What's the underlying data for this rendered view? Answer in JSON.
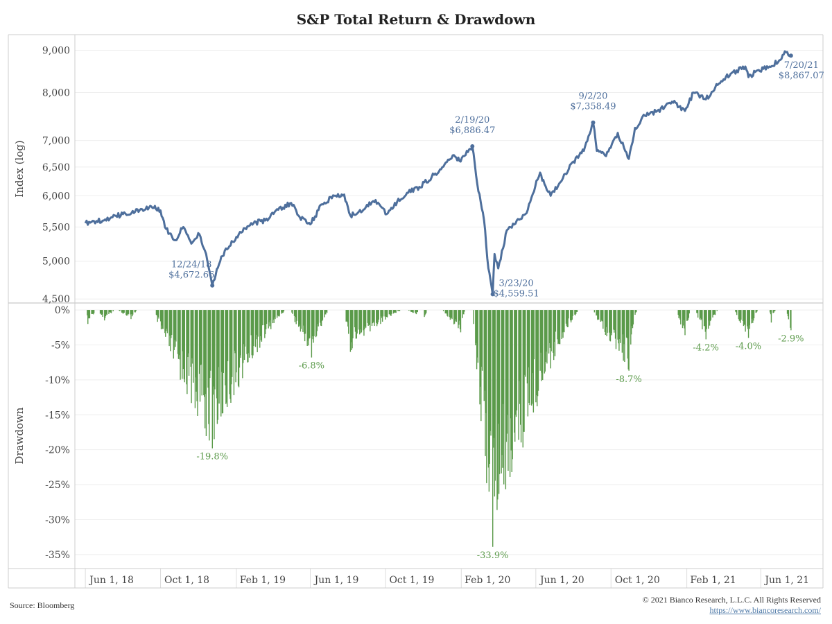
{
  "chart_data": [
    {
      "type": "line",
      "title": "S&P Total Return & Drawdown",
      "ylabel": "Index (log)",
      "yscale": "log",
      "ylim": [
        4450,
        9400
      ],
      "yticks": [
        4500,
        5000,
        5500,
        6000,
        6500,
        7000,
        8000,
        9000
      ],
      "ytick_labels": [
        "4,500",
        "5,000",
        "5,500",
        "6,000",
        "6,500",
        "7,000",
        "8,000",
        "9,000"
      ],
      "xticks": [
        "Jun 1, 18",
        "Oct 1, 18",
        "Feb 1, 19",
        "Jun 1, 19",
        "Oct 1, 19",
        "Feb 1, 20",
        "Jun 1, 20",
        "Oct 1, 20",
        "Feb 1, 21",
        "Jun 1, 21"
      ],
      "xtick_dates": [
        "2018-06-01",
        "2018-10-01",
        "2019-02-01",
        "2019-06-01",
        "2019-10-01",
        "2020-02-01",
        "2020-06-01",
        "2020-10-01",
        "2021-02-01",
        "2021-06-01"
      ],
      "xlim": [
        "2018-05-15",
        "2021-09-10"
      ],
      "grid": true,
      "color": "#4e6f9c",
      "series": [
        {
          "x": [
            "2018-06-01",
            "2018-06-15",
            "2018-07-01",
            "2018-07-15",
            "2018-08-01",
            "2018-08-15",
            "2018-09-01",
            "2018-09-20",
            "2018-10-01",
            "2018-10-10",
            "2018-10-25",
            "2018-11-07",
            "2018-11-20",
            "2018-12-03",
            "2018-12-14",
            "2018-12-24",
            "2019-01-04",
            "2019-01-15",
            "2019-02-01",
            "2019-02-15",
            "2019-03-01",
            "2019-03-20",
            "2019-04-10",
            "2019-05-01",
            "2019-05-15",
            "2019-06-01",
            "2019-06-20",
            "2019-07-10",
            "2019-07-26",
            "2019-08-05",
            "2019-08-15",
            "2019-09-01",
            "2019-09-15",
            "2019-10-03",
            "2019-10-20",
            "2019-11-05",
            "2019-11-25",
            "2019-12-15",
            "2020-01-05",
            "2020-01-20",
            "2020-01-31",
            "2020-02-10",
            "2020-02-19",
            "2020-02-27",
            "2020-03-09",
            "2020-03-16",
            "2020-03-23",
            "2020-03-26",
            "2020-04-01",
            "2020-04-15",
            "2020-05-01",
            "2020-05-15",
            "2020-06-08",
            "2020-06-15",
            "2020-06-25",
            "2020-07-15",
            "2020-08-01",
            "2020-08-18",
            "2020-09-02",
            "2020-09-08",
            "2020-09-23",
            "2020-10-12",
            "2020-10-30",
            "2020-11-09",
            "2020-11-25",
            "2020-12-15",
            "2021-01-08",
            "2021-01-29",
            "2021-02-12",
            "2021-03-04",
            "2021-03-25",
            "2021-04-15",
            "2021-05-07",
            "2021-05-12",
            "2021-05-25",
            "2021-06-15",
            "2021-07-01",
            "2021-07-12",
            "2021-07-20"
          ],
          "values": [
            5560,
            5590,
            5600,
            5650,
            5700,
            5720,
            5780,
            5800,
            5760,
            5470,
            5300,
            5500,
            5250,
            5390,
            5100,
            4672.66,
            4960,
            5180,
            5350,
            5480,
            5560,
            5600,
            5770,
            5880,
            5650,
            5540,
            5860,
            6000,
            6020,
            5680,
            5700,
            5850,
            5930,
            5700,
            5900,
            6050,
            6150,
            6320,
            6550,
            6720,
            6600,
            6800,
            6886.47,
            6200,
            5600,
            4900,
            4559.51,
            5100,
            4900,
            5450,
            5600,
            5700,
            6400,
            6200,
            6000,
            6300,
            6600,
            6800,
            7358.49,
            6800,
            6700,
            7150,
            6650,
            7250,
            7500,
            7600,
            7800,
            7600,
            8000,
            7850,
            8200,
            8450,
            8600,
            8350,
            8500,
            8600,
            8750,
            8950,
            8867.07
          ]
        }
      ],
      "annotations": [
        {
          "date": "2018-12-24",
          "value": 4672.66,
          "line1": "12/24/18",
          "line2": "$4,672.66"
        },
        {
          "date": "2020-02-19",
          "value": 6886.47,
          "line1": "2/19/20",
          "line2": "$6,886.47"
        },
        {
          "date": "2020-03-23",
          "value": 4559.51,
          "line1": "3/23/20",
          "line2": "$4,559.51"
        },
        {
          "date": "2020-09-02",
          "value": 7358.49,
          "line1": "9/2/20",
          "line2": "$7,358.49"
        },
        {
          "date": "2021-07-20",
          "value": 8867.07,
          "line1": "7/20/21",
          "line2": "$8,867.07"
        }
      ]
    },
    {
      "type": "bar",
      "ylabel": "Drawdown",
      "ylim": [
        -37,
        1
      ],
      "yticks": [
        0,
        -5,
        -10,
        -15,
        -20,
        -25,
        -30,
        -35
      ],
      "ytick_labels": [
        "0%",
        "-5%",
        "-10%",
        "-15%",
        "-20%",
        "-25%",
        "-30%",
        "-35%"
      ],
      "color": "#5b9a4a",
      "troughs": [
        {
          "start": "2018-06-01",
          "trough": "2018-06-05",
          "end": "2018-06-20",
          "value": -2.0
        },
        {
          "start": "2018-06-22",
          "trough": "2018-07-02",
          "end": "2018-07-20",
          "value": -1.5
        },
        {
          "start": "2018-07-25",
          "trough": "2018-08-14",
          "end": "2018-08-25",
          "value": -1.3
        },
        {
          "start": "2018-09-21",
          "trough": "2018-12-24",
          "end": "2019-04-23",
          "value": -19.8
        },
        {
          "start": "2019-05-01",
          "trough": "2019-06-03",
          "end": "2019-07-01",
          "value": -6.8
        },
        {
          "start": "2019-07-27",
          "trough": "2019-08-05",
          "end": "2019-10-28",
          "value": -6.0
        },
        {
          "start": "2019-11-05",
          "trough": "2019-11-20",
          "end": "2019-11-25",
          "value": -0.6
        },
        {
          "start": "2019-12-02",
          "trough": "2019-12-03",
          "end": "2019-12-10",
          "value": -1.0
        },
        {
          "start": "2020-01-02",
          "trough": "2020-01-31",
          "end": "2020-02-07",
          "value": -3.2
        },
        {
          "start": "2020-02-20",
          "trough": "2020-03-23",
          "end": "2020-08-11",
          "value": -33.9
        },
        {
          "start": "2020-09-03",
          "trough": "2020-10-30",
          "end": "2020-11-12",
          "value": -8.7
        },
        {
          "start": "2021-01-15",
          "trough": "2021-01-29",
          "end": "2021-02-08",
          "value": -3.6
        },
        {
          "start": "2021-02-16",
          "trough": "2021-03-04",
          "end": "2021-03-24",
          "value": -4.2
        },
        {
          "start": "2021-04-20",
          "trough": "2021-05-12",
          "end": "2021-05-28",
          "value": -4.0
        },
        {
          "start": "2021-06-15",
          "trough": "2021-06-18",
          "end": "2021-06-25",
          "value": -1.8
        },
        {
          "start": "2021-07-13",
          "trough": "2021-07-20",
          "end": "2021-07-20",
          "value": -2.9
        }
      ],
      "labels": [
        {
          "date": "2018-12-24",
          "value": -19.8,
          "text": "-19.8%"
        },
        {
          "date": "2019-06-03",
          "value": -6.8,
          "text": "-6.8%"
        },
        {
          "date": "2020-03-23",
          "value": -33.9,
          "text": "-33.9%"
        },
        {
          "date": "2020-10-30",
          "value": -8.7,
          "text": "-8.7%"
        },
        {
          "date": "2021-03-04",
          "value": -4.2,
          "text": "-4.2%"
        },
        {
          "date": "2021-05-12",
          "value": -4.0,
          "text": "-4.0%"
        },
        {
          "date": "2021-07-20",
          "value": -2.9,
          "text": "-2.9%"
        }
      ]
    }
  ],
  "footer": {
    "source": "Source: Bloomberg",
    "copyright": "© 2021 Bianco Research, L.L.C. All Rights Reserved",
    "url": "https://www.biancoresearch.com/"
  }
}
